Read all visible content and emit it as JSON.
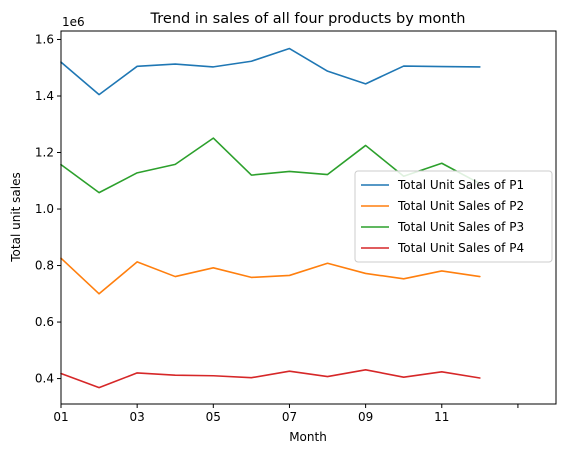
{
  "chart_data": {
    "type": "line",
    "title": "Trend in sales of all four products by month",
    "xlabel": "Month",
    "ylabel": "Total unit sales",
    "y_offset_label": "1e6",
    "x": [
      1,
      2,
      3,
      4,
      5,
      6,
      7,
      8,
      9,
      10,
      11,
      12
    ],
    "xlim": [
      1,
      14
    ],
    "x_ticks": [
      1,
      3,
      5,
      7,
      9,
      11,
      13
    ],
    "x_tick_labels": [
      "01",
      "03",
      "05",
      "07",
      "09",
      "11",
      ""
    ],
    "ylim": [
      0.31,
      1.63
    ],
    "y_ticks": [
      0.4,
      0.6,
      0.8,
      1.0,
      1.2,
      1.4,
      1.6
    ],
    "y_tick_labels": [
      "0.4",
      "0.6",
      "0.8",
      "1.0",
      "1.2",
      "1.4",
      "1.6"
    ],
    "legend_position": "center-right",
    "series": [
      {
        "name": "Total Unit Sales of P1",
        "color": "#1f77b4",
        "values": [
          1.52,
          1.405,
          1.505,
          1.513,
          1.503,
          1.523,
          1.568,
          1.488,
          1.443,
          1.506,
          1.504,
          1.503
        ]
      },
      {
        "name": "Total Unit Sales of P2",
        "color": "#ff7f0e",
        "values": [
          0.826,
          0.7,
          0.813,
          0.761,
          0.792,
          0.758,
          0.765,
          0.808,
          0.772,
          0.753,
          0.781,
          0.761
        ]
      },
      {
        "name": "Total Unit Sales of P3",
        "color": "#2ca02c",
        "values": [
          1.157,
          1.058,
          1.128,
          1.158,
          1.251,
          1.12,
          1.133,
          1.122,
          1.225,
          1.116,
          1.162,
          1.09
        ]
      },
      {
        "name": "Total Unit Sales of P4",
        "color": "#d62728",
        "values": [
          0.418,
          0.368,
          0.42,
          0.412,
          0.41,
          0.403,
          0.426,
          0.407,
          0.431,
          0.405,
          0.424,
          0.402
        ]
      }
    ]
  }
}
